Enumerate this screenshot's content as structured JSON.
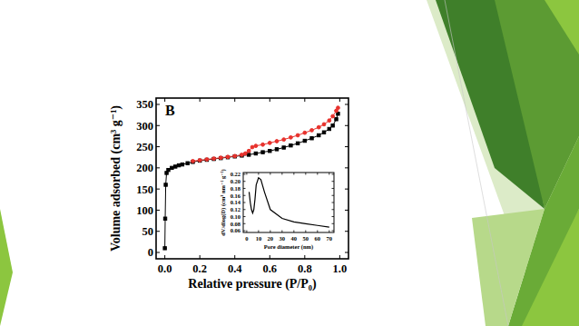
{
  "chart_data": [
    {
      "type": "line",
      "title": "B",
      "x_label": "Relative pressure (P/P₀)",
      "y_label": "Volume adsorbed (cm³ g⁻¹)",
      "xlim": [
        -0.05,
        1.05
      ],
      "xticks": [
        {
          "value": 0,
          "label": "0.0"
        },
        0.2,
        0.4,
        0.6,
        0.8,
        {
          "value": 1,
          "label": "1.0"
        }
      ],
      "ylim": [
        -15,
        365
      ],
      "yticks": [
        0,
        50,
        100,
        150,
        200,
        250,
        300,
        350
      ],
      "grid": false,
      "series": [
        {
          "color": "#000000",
          "marker": "square",
          "line_style": "solid",
          "x": [
            0.0,
            0.002,
            0.005,
            0.01,
            0.02,
            0.04,
            0.06,
            0.08,
            0.1,
            0.13,
            0.16,
            0.2,
            0.24,
            0.28,
            0.32,
            0.36,
            0.4,
            0.44,
            0.48,
            0.52,
            0.56,
            0.6,
            0.64,
            0.68,
            0.72,
            0.76,
            0.8,
            0.84,
            0.88,
            0.91,
            0.94,
            0.96,
            0.98,
            0.99
          ],
          "values": [
            10,
            80,
            160,
            188,
            195,
            200,
            203,
            206,
            208,
            211,
            214,
            217,
            219,
            221,
            223,
            225,
            227,
            229,
            231,
            234,
            237,
            240,
            244,
            248,
            253,
            258,
            264,
            270,
            277,
            284,
            292,
            300,
            315,
            328
          ]
        },
        {
          "color": "#e8322d",
          "marker": "circle",
          "line_style": "solid",
          "x": [
            0.99,
            0.98,
            0.96,
            0.94,
            0.91,
            0.88,
            0.84,
            0.8,
            0.76,
            0.72,
            0.68,
            0.64,
            0.6,
            0.56,
            0.52,
            0.5,
            0.48,
            0.46,
            0.44,
            0.4,
            0.36,
            0.32,
            0.28,
            0.24,
            0.2,
            0.16
          ],
          "values": [
            342,
            335,
            322,
            312,
            303,
            296,
            289,
            283,
            277,
            272,
            267,
            263,
            259,
            255,
            252,
            249,
            240,
            234,
            231,
            228,
            226,
            224,
            222,
            220,
            218,
            216
          ]
        }
      ]
    },
    {
      "type": "line",
      "x_label": "Pore diameter (nm)",
      "y_label": "dV/dlog(D) (cm³ nm⁻¹ g⁻¹)",
      "xlim": [
        -3,
        74
      ],
      "xticks": [
        0,
        10,
        20,
        30,
        40,
        50,
        60,
        70
      ],
      "ylim": [
        0.055,
        0.225
      ],
      "yticks": [
        0.06,
        0.08,
        {
          "value": 0.1,
          "label": "0.10"
        },
        0.12,
        0.14,
        0.16,
        0.18,
        {
          "value": 0.2,
          "label": "0.20"
        },
        0.22
      ],
      "grid": false,
      "series": [
        {
          "color": "#000000",
          "line_style": "solid",
          "x": [
            2,
            3,
            4,
            5,
            6,
            7,
            8,
            10,
            12,
            15,
            20,
            30,
            40,
            50,
            60,
            70
          ],
          "values": [
            0.17,
            0.14,
            0.12,
            0.11,
            0.12,
            0.15,
            0.19,
            0.21,
            0.205,
            0.17,
            0.12,
            0.095,
            0.085,
            0.08,
            0.075,
            0.07
          ]
        }
      ]
    }
  ]
}
